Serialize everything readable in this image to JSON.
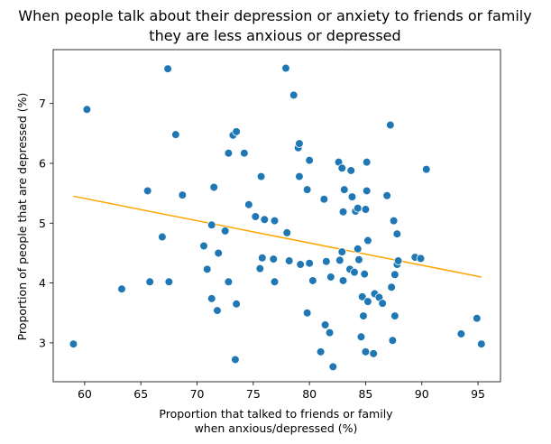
{
  "chart_data": {
    "type": "scatter",
    "title": [
      "When people talk about their depression or anxiety to friends or family",
      "they are less anxious or depressed"
    ],
    "xlabel": [
      "Proportion that talked to friends or family",
      "when anxious/depressed (%)"
    ],
    "ylabel": "Proportion of people that are depressed (%)",
    "xlim": [
      57.2,
      97.0
    ],
    "ylim": [
      2.35,
      7.9
    ],
    "xticks": [
      60,
      65,
      70,
      75,
      80,
      85,
      90,
      95
    ],
    "yticks": [
      3,
      4,
      5,
      6,
      7
    ],
    "colors": {
      "points": "#1f77b4",
      "trend": "#ffa500"
    },
    "trendline": {
      "x": [
        59.0,
        95.3
      ],
      "y": [
        5.45,
        4.1
      ]
    },
    "points": [
      [
        59.0,
        2.98
      ],
      [
        60.2,
        6.9
      ],
      [
        63.3,
        3.9
      ],
      [
        65.6,
        5.54
      ],
      [
        65.8,
        4.02
      ],
      [
        66.9,
        4.77
      ],
      [
        67.4,
        7.58
      ],
      [
        67.5,
        4.02
      ],
      [
        68.1,
        6.48
      ],
      [
        68.7,
        5.47
      ],
      [
        70.6,
        4.62
      ],
      [
        70.9,
        4.23
      ],
      [
        71.3,
        3.74
      ],
      [
        71.3,
        4.97
      ],
      [
        71.5,
        5.6
      ],
      [
        71.8,
        3.54
      ],
      [
        71.9,
        4.5
      ],
      [
        72.5,
        4.87
      ],
      [
        72.8,
        6.17
      ],
      [
        72.8,
        4.02
      ],
      [
        73.2,
        6.47
      ],
      [
        73.4,
        2.72
      ],
      [
        73.5,
        6.53
      ],
      [
        73.5,
        3.65
      ],
      [
        74.2,
        6.17
      ],
      [
        74.6,
        5.31
      ],
      [
        75.2,
        5.11
      ],
      [
        75.6,
        4.24
      ],
      [
        75.7,
        5.78
      ],
      [
        75.8,
        4.42
      ],
      [
        76.0,
        5.06
      ],
      [
        76.8,
        4.4
      ],
      [
        76.9,
        5.04
      ],
      [
        76.9,
        4.02
      ],
      [
        77.9,
        7.59
      ],
      [
        78.0,
        4.84
      ],
      [
        78.2,
        4.37
      ],
      [
        78.6,
        7.14
      ],
      [
        79.0,
        6.26
      ],
      [
        79.1,
        6.33
      ],
      [
        79.1,
        5.78
      ],
      [
        79.2,
        4.31
      ],
      [
        79.8,
        5.56
      ],
      [
        79.8,
        3.5
      ],
      [
        80.0,
        6.05
      ],
      [
        80.0,
        4.33
      ],
      [
        80.3,
        4.04
      ],
      [
        81.0,
        2.85
      ],
      [
        81.3,
        5.4
      ],
      [
        81.4,
        3.3
      ],
      [
        81.5,
        4.36
      ],
      [
        81.8,
        3.17
      ],
      [
        81.9,
        4.1
      ],
      [
        82.1,
        2.6
      ],
      [
        82.6,
        6.02
      ],
      [
        82.7,
        4.38
      ],
      [
        82.9,
        4.52
      ],
      [
        82.9,
        5.92
      ],
      [
        83.0,
        5.19
      ],
      [
        83.0,
        4.04
      ],
      [
        83.1,
        5.56
      ],
      [
        83.6,
        4.23
      ],
      [
        83.7,
        5.88
      ],
      [
        83.8,
        5.44
      ],
      [
        84.0,
        4.18
      ],
      [
        84.1,
        5.2
      ],
      [
        84.3,
        4.57
      ],
      [
        84.3,
        5.25
      ],
      [
        84.4,
        4.39
      ],
      [
        84.6,
        3.1
      ],
      [
        84.7,
        3.77
      ],
      [
        84.8,
        3.45
      ],
      [
        84.9,
        4.15
      ],
      [
        85.0,
        5.23
      ],
      [
        85.0,
        2.85
      ],
      [
        85.1,
        5.54
      ],
      [
        85.1,
        6.02
      ],
      [
        85.2,
        4.71
      ],
      [
        85.2,
        3.69
      ],
      [
        85.7,
        2.82
      ],
      [
        85.8,
        3.82
      ],
      [
        86.2,
        3.76
      ],
      [
        86.5,
        3.66
      ],
      [
        86.9,
        5.46
      ],
      [
        87.2,
        6.64
      ],
      [
        87.3,
        3.93
      ],
      [
        87.4,
        3.04
      ],
      [
        87.5,
        5.04
      ],
      [
        87.6,
        3.45
      ],
      [
        87.6,
        4.14
      ],
      [
        87.8,
        4.31
      ],
      [
        87.8,
        4.82
      ],
      [
        87.9,
        4.37
      ],
      [
        89.4,
        4.43
      ],
      [
        89.9,
        4.41
      ],
      [
        90.4,
        5.9
      ],
      [
        93.5,
        3.15
      ],
      [
        94.9,
        3.41
      ],
      [
        95.3,
        2.98
      ]
    ]
  }
}
